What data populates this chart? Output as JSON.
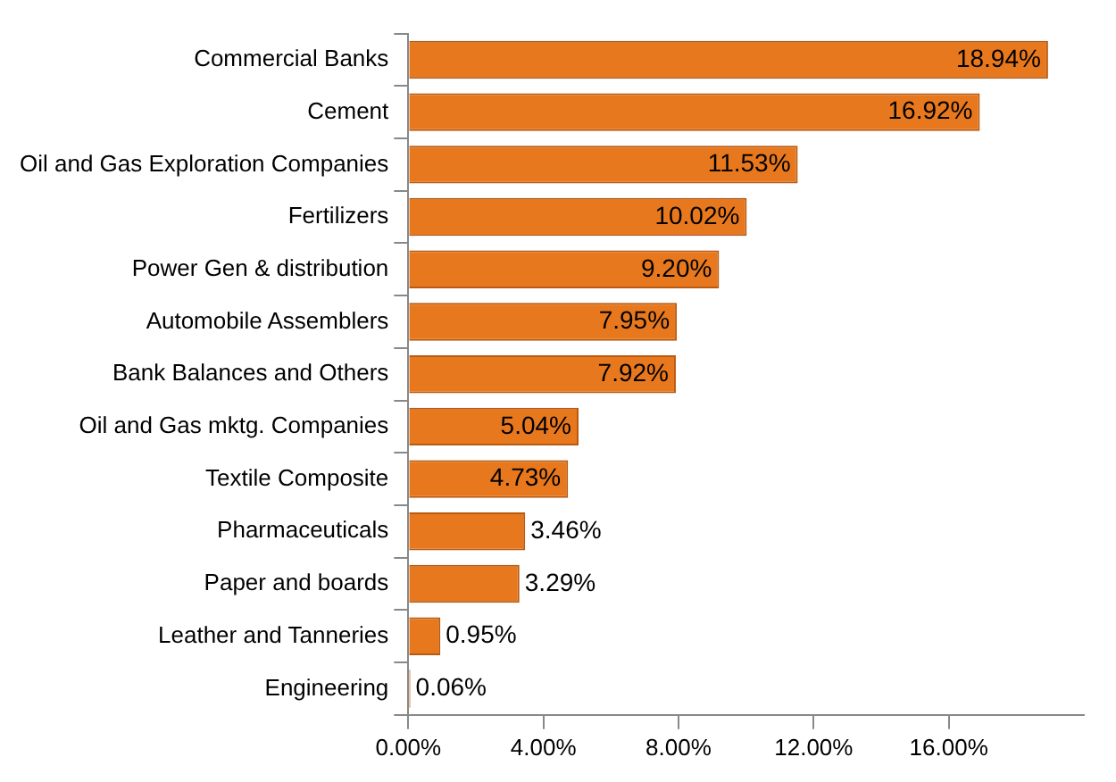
{
  "chart_data": {
    "type": "bar",
    "orientation": "horizontal",
    "categories": [
      "Commercial Banks",
      "Cement",
      "Oil and Gas Exploration Companies",
      "Fertilizers",
      "Power Gen & distribution",
      "Automobile Assemblers",
      "Bank Balances and Others",
      "Oil and Gas mktg. Companies",
      "Textile Composite",
      "Pharmaceuticals",
      "Paper and boards",
      "Leather and Tanneries",
      "Engineering"
    ],
    "values": [
      18.94,
      16.92,
      11.53,
      10.02,
      9.2,
      7.95,
      7.92,
      5.04,
      4.73,
      3.46,
      3.29,
      0.95,
      0.06
    ],
    "value_labels": [
      "18.94%",
      "16.92%",
      "11.53%",
      "10.02%",
      "9.20%",
      "7.95%",
      "7.92%",
      "5.04%",
      "4.73%",
      "3.46%",
      "3.29%",
      "0.95%",
      "0.06%"
    ],
    "color": "#e8781e",
    "xlim": [
      0,
      20
    ],
    "xticks": [
      {
        "value": 0,
        "label": "0.00%"
      },
      {
        "value": 4,
        "label": "4.00%"
      },
      {
        "value": 8,
        "label": "8.00%"
      },
      {
        "value": 12,
        "label": "12.00%"
      },
      {
        "value": 16,
        "label": "16.00%"
      }
    ],
    "grid": false,
    "legend": false
  }
}
